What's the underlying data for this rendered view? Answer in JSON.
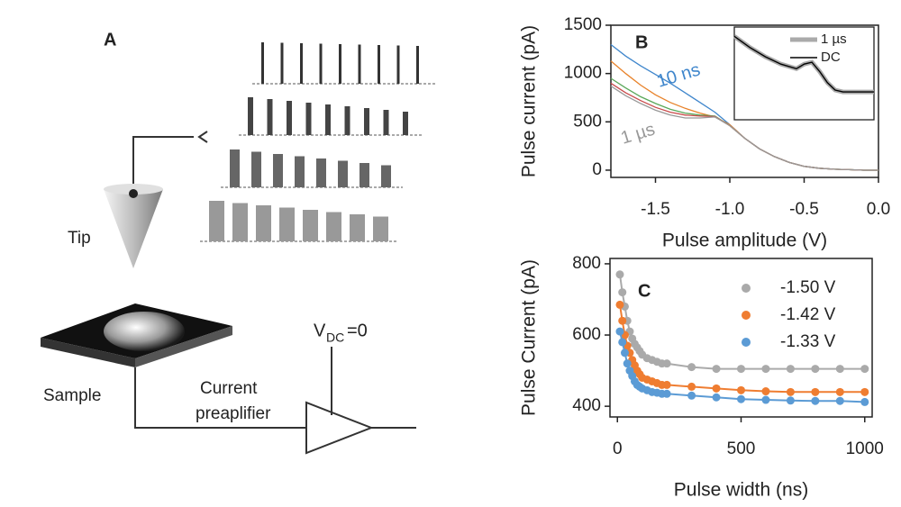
{
  "diagram": {
    "label": "A",
    "tip": "Tip",
    "sample": "Sample",
    "amplifier_line1": "Current",
    "amplifier_line2": "preaplifier",
    "bias_symbol": "V",
    "bias_subscript": "DC",
    "bias_value": "=0"
  },
  "chart_data": [
    {
      "type": "line",
      "label": "B",
      "xlabel": "Pulse amplitude (V)",
      "ylabel": "Pulse current (pA)",
      "x": [
        -1.8,
        -1.7,
        -1.6,
        -1.5,
        -1.4,
        -1.3,
        -1.2,
        -1.1,
        -1.0,
        -0.9,
        -0.8,
        -0.7,
        -0.6,
        -0.5,
        -0.4,
        -0.3,
        -0.2,
        -0.1,
        0.0
      ],
      "series": [
        {
          "name": "10 ns",
          "color": "#3f86cc",
          "values": [
            1300,
            1180,
            1080,
            990,
            900,
            800,
            700,
            600,
            470,
            330,
            220,
            140,
            80,
            40,
            20,
            10,
            5,
            0,
            0
          ]
        },
        {
          "color": "#e8822a",
          "values": [
            1130,
            1000,
            880,
            780,
            700,
            640,
            590,
            550,
            470,
            330,
            220,
            140,
            80,
            40,
            20,
            10,
            5,
            0,
            0
          ]
        },
        {
          "color": "#5aa85a",
          "values": [
            950,
            850,
            760,
            690,
            630,
            590,
            570,
            560,
            460,
            330,
            220,
            140,
            80,
            40,
            20,
            10,
            5,
            0,
            0
          ]
        },
        {
          "color": "#c84a4a",
          "values": [
            900,
            800,
            720,
            650,
            600,
            570,
            560,
            555,
            460,
            330,
            220,
            140,
            80,
            40,
            20,
            10,
            5,
            0,
            0
          ]
        },
        {
          "name": "1 µs",
          "color": "#999999",
          "values": [
            870,
            770,
            690,
            620,
            570,
            540,
            540,
            550,
            460,
            330,
            220,
            140,
            80,
            40,
            20,
            10,
            5,
            0,
            0
          ]
        }
      ],
      "xlim": [
        -1.8,
        0
      ],
      "ylim": [
        -75,
        1500
      ],
      "xticks": [
        -1.5,
        {
          "value": -1,
          "label": "-1.0"
        },
        -0.5,
        {
          "value": 0,
          "label": "0.0"
        }
      ],
      "yticks": [
        0,
        500,
        1000,
        1500
      ],
      "inset": {
        "type": "line",
        "x": [
          -1.8,
          -1.6,
          -1.4,
          -1.2,
          -1.0,
          -0.9,
          -0.8,
          -0.7,
          -0.6,
          -0.5,
          -0.4,
          -0.2,
          0.0
        ],
        "xlim": [
          -1.8,
          0
        ],
        "ylim": [
          0,
          1
        ],
        "series": [
          {
            "name": "1 µs",
            "color": "#aaaaaa",
            "values": [
              0.9,
              0.78,
              0.68,
              0.6,
              0.55,
              0.6,
              0.62,
              0.52,
              0.4,
              0.32,
              0.3,
              0.3,
              0.3
            ]
          },
          {
            "name": "DC",
            "color": "#000000",
            "values": [
              0.9,
              0.78,
              0.68,
              0.6,
              0.55,
              0.6,
              0.62,
              0.52,
              0.4,
              0.32,
              0.3,
              0.3,
              0.3
            ]
          }
        ]
      }
    },
    {
      "type": "scatter",
      "label": "C",
      "xlabel": "Pulse width (ns)",
      "ylabel": "Pulse Current (pA)",
      "x": [
        10,
        20,
        30,
        40,
        50,
        60,
        70,
        80,
        90,
        100,
        120,
        140,
        160,
        180,
        200,
        300,
        400,
        500,
        600,
        700,
        800,
        900,
        1000
      ],
      "series": [
        {
          "name": "-1.50 V",
          "color": "#aaaaaa",
          "values": [
            770,
            720,
            680,
            640,
            610,
            590,
            575,
            565,
            555,
            545,
            535,
            530,
            525,
            520,
            520,
            510,
            505,
            505,
            505,
            505,
            505,
            505,
            505
          ]
        },
        {
          "name": "-1.42 V",
          "color": "#ef7d31",
          "values": [
            685,
            640,
            600,
            570,
            550,
            530,
            515,
            500,
            490,
            480,
            475,
            470,
            465,
            460,
            460,
            455,
            450,
            445,
            442,
            440,
            440,
            440,
            440
          ]
        },
        {
          "name": "-1.33 V",
          "color": "#5b9bd5",
          "values": [
            610,
            580,
            550,
            520,
            500,
            485,
            470,
            460,
            455,
            450,
            445,
            440,
            438,
            435,
            435,
            430,
            425,
            420,
            418,
            416,
            415,
            415,
            412
          ]
        }
      ],
      "xlim": [
        -30,
        1030
      ],
      "ylim": [
        370,
        815
      ],
      "xticks": [
        0,
        500,
        1000
      ],
      "yticks": [
        400,
        600,
        800
      ],
      "legend": "upper right"
    }
  ]
}
